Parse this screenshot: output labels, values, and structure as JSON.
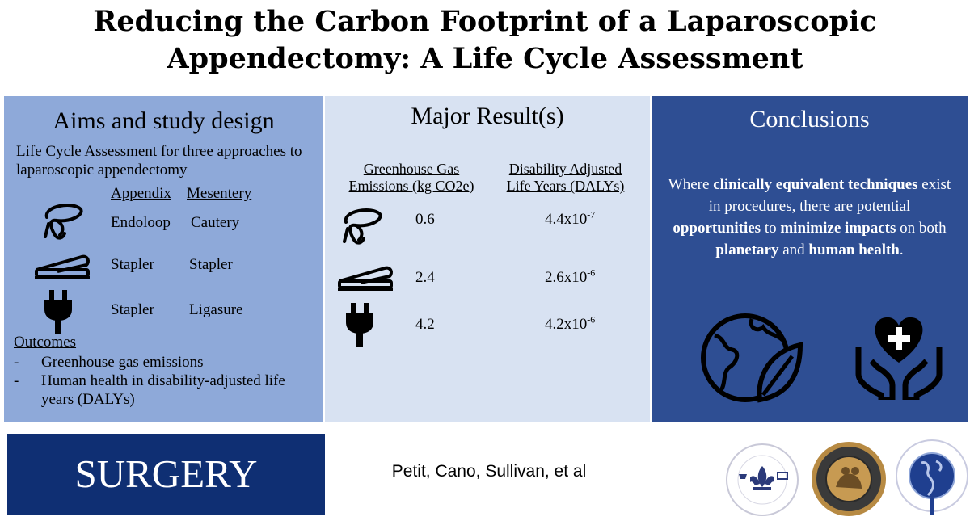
{
  "title": {
    "line1": "Reducing the Carbon Footprint of a Laparoscopic",
    "line2": "Appendectomy: A Life Cycle Assessment"
  },
  "aims": {
    "heading": "Aims and study design",
    "intro": "Life Cycle Assessment for three approaches to laparoscopic appendectomy",
    "col_appendix": "Appendix",
    "col_mesentery": "Mesentery",
    "rows": [
      {
        "icon": "endoloop-icon",
        "appendix": "Endoloop",
        "mesentery": "Cautery"
      },
      {
        "icon": "stapler-icon",
        "appendix": "Stapler",
        "mesentery": "Stapler"
      },
      {
        "icon": "plug-icon",
        "appendix": "Stapler",
        "mesentery": "Ligasure"
      }
    ],
    "outcomes_heading": "Outcomes",
    "outcomes": [
      "Greenhouse gas emissions",
      "Human health in disability-adjusted life years (DALYs)"
    ]
  },
  "results": {
    "heading": "Major Result(s)",
    "col1_line1": "Greenhouse Gas",
    "col1_line2": "Emissions (kg CO2e)",
    "col2_line1": "Disability Adjusted",
    "col2_line2": "Life Years (DALYs)",
    "rows": [
      {
        "icon": "endoloop-icon",
        "ghg": "0.6",
        "daly_base": "4.4x10",
        "daly_exp": "-7"
      },
      {
        "icon": "stapler-icon",
        "ghg": "2.4",
        "daly_base": "2.6x10",
        "daly_exp": "-6"
      },
      {
        "icon": "plug-icon",
        "ghg": "4.2",
        "daly_base": "4.2x10",
        "daly_exp": "-6"
      }
    ]
  },
  "conclusions": {
    "heading": "Conclusions",
    "t1": "Where ",
    "t2": "clinically equivalent techniques",
    "t3": " exist in procedures, there are potential ",
    "t4": "opportunities",
    "t5": " to ",
    "t6": "minimize impacts",
    "t7": " on both ",
    "t8": "planetary",
    "t9": " and ",
    "t10": "human health",
    "t11": ".",
    "icons": [
      "globe-leaf-icon",
      "heart-hands-icon"
    ]
  },
  "footer": {
    "journal": "SURGERY",
    "authors": "Petit, Cano, Sullivan, et al",
    "logos": [
      "society-of-university-surgeons-logo",
      "central-surgical-association-seal",
      "american-association-of-endocrine-surgeons-logo"
    ]
  },
  "colors": {
    "aims_bg": "#8ea9d9",
    "results_bg": "#d8e2f2",
    "conclusions_bg": "#2e4e93",
    "journal_bg": "#0f2f73"
  }
}
